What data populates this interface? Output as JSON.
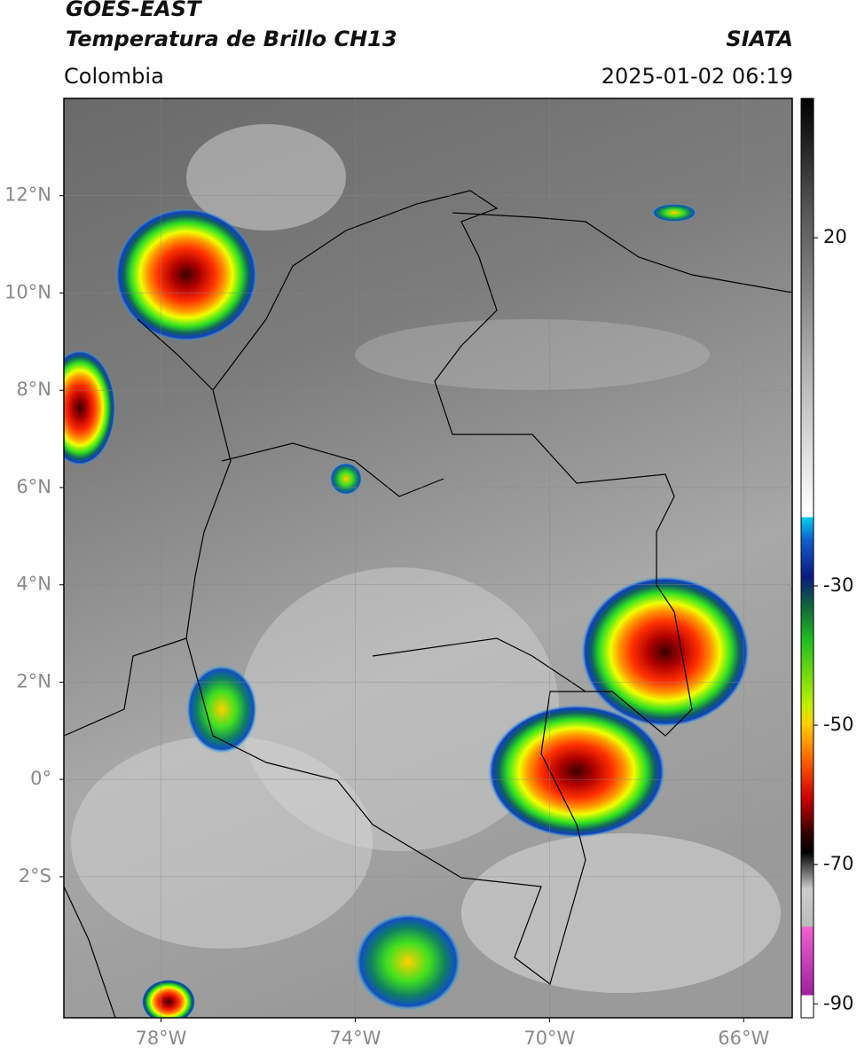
{
  "header": {
    "title": "GOES-EAST",
    "subtitle": "Temperatura de Brillo CH13",
    "source": "SIATA",
    "region": "Colombia",
    "datetime": "2025-01-02 06:19"
  },
  "map": {
    "xlim": [
      -80,
      -65
    ],
    "ylim": [
      -4.9,
      14
    ],
    "xticks": [
      {
        "value": -78,
        "label": "78°W"
      },
      {
        "value": -74,
        "label": "74°W"
      },
      {
        "value": -70,
        "label": "70°W"
      },
      {
        "value": -66,
        "label": "66°W"
      }
    ],
    "yticks": [
      {
        "value": 12,
        "label": "12°N"
      },
      {
        "value": 10,
        "label": "10°N"
      },
      {
        "value": 8,
        "label": "8°N"
      },
      {
        "value": 6,
        "label": "6°N"
      },
      {
        "value": 4,
        "label": "4°N"
      },
      {
        "value": 2,
        "label": "2°N"
      },
      {
        "value": 0,
        "label": "0°"
      },
      {
        "value": -2,
        "label": "2°S"
      }
    ]
  },
  "colorbar": {
    "lim": [
      -92,
      40
    ],
    "ticks": [
      20,
      -30,
      -50,
      -70,
      -90
    ]
  }
}
